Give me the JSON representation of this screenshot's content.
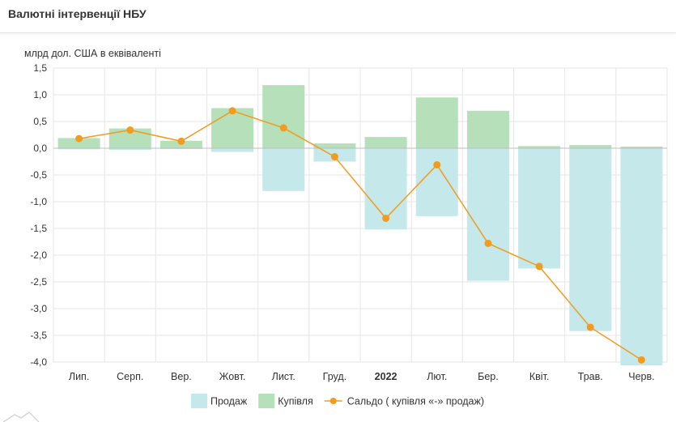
{
  "header": {
    "title": "Валютні інтервенції НБУ"
  },
  "chart_data": {
    "type": "bar+line",
    "title": "Валютні інтервенції НБУ",
    "ylabel": "млрд дол. США в еквіваленті",
    "xlabel": "",
    "ylim": [
      -4.0,
      1.5
    ],
    "y_ticks": [
      "1,5",
      "1,0",
      "0,5",
      "0,0",
      "-0,5",
      "-1,0",
      "-1,5",
      "-2,0",
      "-2,5",
      "-3,0",
      "-3,5",
      "-4,0"
    ],
    "categories": [
      "Лип.",
      "Серп.",
      "Вер.",
      "Жовт.",
      "Лист.",
      "Груд.",
      "2022",
      "Лют.",
      "Бер.",
      "Квіт.",
      "Трав.",
      "Черв."
    ],
    "bold_categories": [
      "2022"
    ],
    "grid": true,
    "legend_position": "bottom",
    "series": [
      {
        "name": "Продаж",
        "kind": "bar",
        "color": "#c5e8ea",
        "values": [
          -0.02,
          -0.03,
          -0.01,
          -0.07,
          -0.8,
          -0.25,
          -1.52,
          -1.27,
          -2.48,
          -2.25,
          -3.42,
          -4.06
        ]
      },
      {
        "name": "Купівля",
        "kind": "bar",
        "color": "#b5e0b9",
        "values": [
          0.19,
          0.37,
          0.14,
          0.75,
          1.18,
          0.09,
          0.21,
          0.95,
          0.7,
          0.04,
          0.06,
          0.03
        ]
      },
      {
        "name": "Сальдо ( купівля «-» продаж)",
        "kind": "line",
        "color": "#f29b1d",
        "values": [
          0.18,
          0.34,
          0.13,
          0.7,
          0.38,
          -0.16,
          -1.31,
          -0.31,
          -1.78,
          -2.21,
          -3.35,
          -3.96
        ]
      }
    ]
  }
}
